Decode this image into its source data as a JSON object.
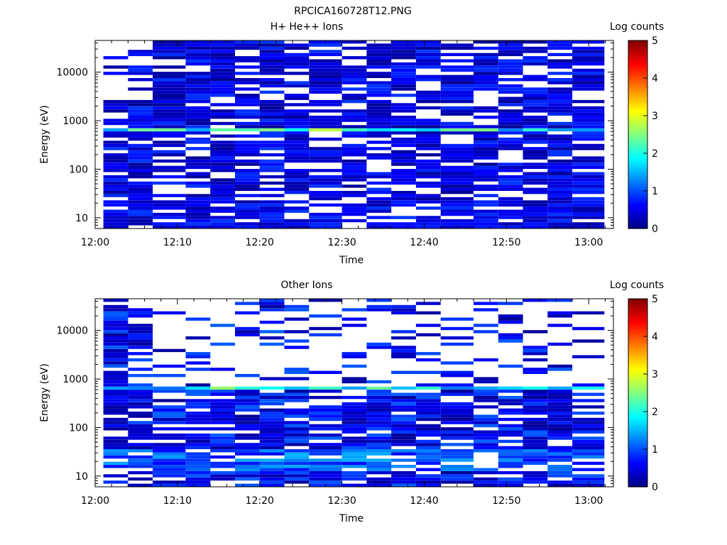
{
  "page_title": "RPCICA160728T12.PNG",
  "colors": {
    "background": "#ffffff",
    "empty_bin": "#ffffff",
    "colormap": [
      "#000080",
      "#0000ff",
      "#0080ff",
      "#00ffff",
      "#80ff80",
      "#ffff00",
      "#ff8000",
      "#ff0000",
      "#800000"
    ]
  },
  "chart_data": [
    {
      "type": "heatmap",
      "title": "H+ He++ Ions",
      "xlabel": "Time",
      "ylabel": "Energy (eV)",
      "x_tick_labels": [
        "12:00",
        "12:10",
        "12:20",
        "12:30",
        "12:40",
        "12:50",
        "13:00"
      ],
      "x_tick_minutes": [
        0,
        10,
        20,
        30,
        40,
        50,
        60
      ],
      "xlim_minutes": [
        0,
        63
      ],
      "time_bins_start_minutes": [
        1,
        4,
        7,
        11,
        14,
        17,
        20,
        23,
        26,
        30,
        33,
        36,
        39,
        42,
        46,
        49,
        52,
        55,
        58
      ],
      "y_scale": "log",
      "ylim": [
        6,
        45000
      ],
      "y_tick_labels": [
        "10",
        "100",
        "1000",
        "10000"
      ],
      "y_tick_values": [
        10,
        100,
        1000,
        10000
      ],
      "colorbar": {
        "label": "Log counts",
        "range": [
          0,
          5
        ],
        "tick_labels": [
          "0",
          "1",
          "2",
          "3",
          "4",
          "5"
        ]
      },
      "peak_band": {
        "energy_eV": [
          560,
          680
        ],
        "log_counts": [
          1.2,
          3.0
        ]
      },
      "background_log_counts": [
        0.1,
        0.9
      ],
      "low_energy_enhancement": {
        "energy_eV": [
          6,
          12
        ],
        "log_counts": [
          0.2,
          0.9
        ]
      },
      "sparse_bins": {
        "time_bins": [
          0,
          1
        ],
        "energy_eV_above": 2500
      }
    },
    {
      "type": "heatmap",
      "title": "Other Ions",
      "xlabel": "Time",
      "ylabel": "Energy (eV)",
      "x_tick_labels": [
        "12:00",
        "12:10",
        "12:20",
        "12:30",
        "12:40",
        "12:50",
        "13:00"
      ],
      "x_tick_minutes": [
        0,
        10,
        20,
        30,
        40,
        50,
        60
      ],
      "xlim_minutes": [
        0,
        63
      ],
      "time_bins_start_minutes": [
        1,
        4,
        7,
        11,
        14,
        17,
        20,
        23,
        26,
        30,
        33,
        36,
        39,
        42,
        46,
        49,
        52,
        55,
        58
      ],
      "y_scale": "log",
      "ylim": [
        6,
        45000
      ],
      "y_tick_labels": [
        "10",
        "100",
        "1000",
        "10000"
      ],
      "y_tick_values": [
        10,
        100,
        1000,
        10000
      ],
      "colorbar": {
        "label": "Log counts",
        "range": [
          0,
          5
        ],
        "tick_labels": [
          "0",
          "1",
          "2",
          "3",
          "4",
          "5"
        ]
      },
      "peak_band": {
        "energy_eV": [
          560,
          680
        ],
        "log_counts": [
          1.0,
          2.6
        ]
      },
      "background_log_counts": [
        0.1,
        1.1
      ],
      "low_energy_enhancement": {
        "energy_eV": [
          12,
          35
        ],
        "log_counts": [
          0.6,
          1.5
        ]
      },
      "sparse_bins": {
        "time_bins": [
          2,
          18
        ],
        "energy_eV_above": 700
      }
    }
  ]
}
